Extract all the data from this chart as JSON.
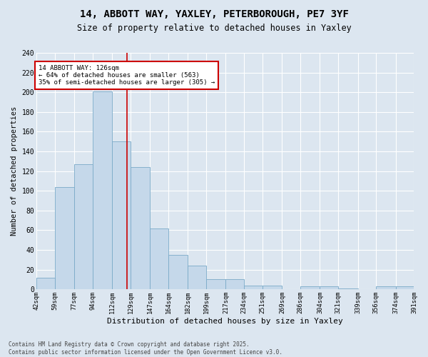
{
  "title_line1": "14, ABBOTT WAY, YAXLEY, PETERBOROUGH, PE7 3YF",
  "title_line2": "Size of property relative to detached houses in Yaxley",
  "xlabel": "Distribution of detached houses by size in Yaxley",
  "ylabel": "Number of detached properties",
  "footnote": "Contains HM Land Registry data © Crown copyright and database right 2025.\nContains public sector information licensed under the Open Government Licence v3.0.",
  "bar_color": "#c5d8ea",
  "bar_edge_color": "#7aaac8",
  "background_color": "#dce6f0",
  "vline_color": "#cc0000",
  "vline_x": 126,
  "annotation_text": "14 ABBOTT WAY: 126sqm\n← 64% of detached houses are smaller (563)\n35% of semi-detached houses are larger (305) →",
  "annotation_box_color": "#ffffff",
  "annotation_edge_color": "#cc0000",
  "bins": [
    42,
    59,
    77,
    94,
    112,
    129,
    147,
    164,
    182,
    199,
    217,
    234,
    251,
    269,
    286,
    304,
    321,
    339,
    356,
    374,
    391
  ],
  "counts": [
    12,
    104,
    127,
    201,
    150,
    124,
    62,
    35,
    24,
    10,
    10,
    4,
    4,
    0,
    3,
    3,
    1,
    0,
    3,
    3
  ],
  "ylim": [
    0,
    240
  ],
  "yticks": [
    0,
    20,
    40,
    60,
    80,
    100,
    120,
    140,
    160,
    180,
    200,
    220,
    240
  ]
}
